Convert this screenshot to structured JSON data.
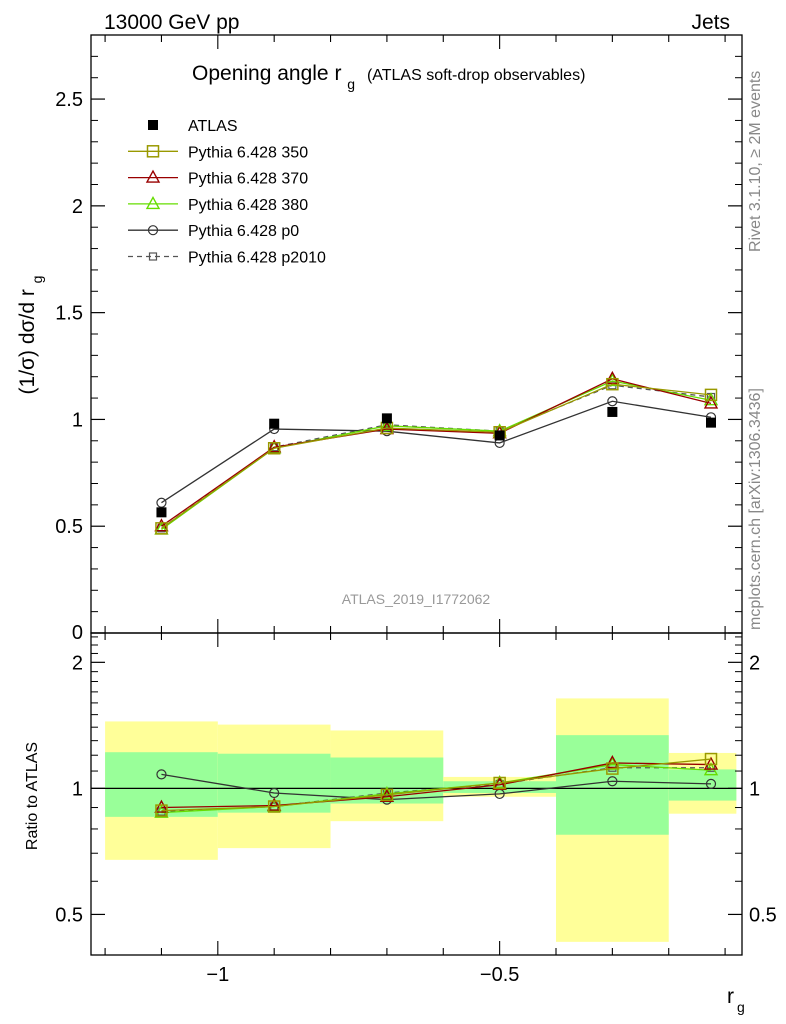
{
  "header": {
    "left": "13000 GeV pp",
    "right": "Jets"
  },
  "side_text": {
    "rivet": "Rivet 3.1.10, ≥ 2M events",
    "mcplots": "mcplots.cern.ch [arXiv:1306.3436]"
  },
  "chart_data": [
    {
      "type": "line",
      "title": "Opening angle r",
      "title_sub": "g",
      "title_suffix": "(ATLAS soft-drop observables)",
      "ylabel": "(1/σ) dσ/d r",
      "ylabel_sub": "g",
      "xlabel": "r",
      "xlabel_sub": "g",
      "watermark": "ATLAS_2019_I1772062",
      "xlim": [
        -1.225,
        -0.07
      ],
      "ylim": [
        0,
        2.8
      ],
      "yticks": [
        "0.5",
        "1",
        "1.5",
        "2",
        "2.5"
      ],
      "ytick_values": [
        0.5,
        1,
        1.5,
        2,
        2.5
      ],
      "y_zero_label": "0",
      "xtick_values": [
        -1,
        -0.5
      ],
      "x": [
        -1.1,
        -0.9,
        -0.7,
        -0.5,
        -0.3,
        -0.125
      ],
      "legend_position": "top-left",
      "series": [
        {
          "name": "ATLAS",
          "color": "#000000",
          "marker": "filled-square",
          "line": "none",
          "values": [
            0.565,
            0.98,
            1.005,
            0.925,
            1.035,
            0.985
          ]
        },
        {
          "name": "Pythia 6.428 350",
          "color": "#999900",
          "marker": "open-square",
          "line": "solid",
          "values": [
            0.49,
            0.865,
            0.96,
            0.94,
            1.165,
            1.115
          ]
        },
        {
          "name": "Pythia 6.428 370",
          "color": "#990000",
          "marker": "open-triangle",
          "line": "solid",
          "values": [
            0.5,
            0.87,
            0.955,
            0.935,
            1.19,
            1.075
          ]
        },
        {
          "name": "Pythia 6.428 380",
          "color": "#66dd00",
          "marker": "open-triangle",
          "line": "solid",
          "values": [
            0.485,
            0.865,
            0.97,
            0.945,
            1.18,
            1.09
          ]
        },
        {
          "name": "Pythia 6.428 p0",
          "color": "#333333",
          "marker": "open-circle",
          "line": "solid",
          "values": [
            0.61,
            0.955,
            0.945,
            0.89,
            1.085,
            1.01
          ]
        },
        {
          "name": "Pythia 6.428 p2010",
          "color": "#555555",
          "marker": "open-square-small",
          "line": "dashed",
          "values": [
            0.49,
            0.87,
            0.975,
            0.945,
            1.16,
            1.105
          ]
        }
      ]
    },
    {
      "type": "line",
      "ylabel": "Ratio to ATLAS",
      "xlabel": "r",
      "xlabel_sub": "g",
      "ylim": [
        0.4,
        2.35
      ],
      "xlim": [
        -1.225,
        -0.07
      ],
      "yticks": [
        "0.5",
        "1",
        "2"
      ],
      "ytick_values": [
        0.5,
        1,
        2
      ],
      "xticks": [
        "−1",
        "−0.5"
      ],
      "xtick_values": [
        -1,
        -0.5
      ],
      "bands": {
        "bin_edges": [
          -1.2,
          -1.0,
          -0.8,
          -0.6,
          -0.4,
          -0.2,
          -0.08
        ],
        "green_low": [
          0.855,
          0.875,
          0.92,
          0.975,
          0.775,
          0.935
        ],
        "green_high": [
          1.22,
          1.21,
          1.185,
          1.04,
          1.34,
          1.11
        ],
        "yellow_low": [
          0.675,
          0.72,
          0.835,
          0.955,
          0.43,
          0.87
        ],
        "yellow_high": [
          1.445,
          1.42,
          1.375,
          1.065,
          1.64,
          1.215
        ],
        "green_color": "#99ff99",
        "yellow_color": "#ffff99"
      },
      "x": [
        -1.1,
        -0.9,
        -0.7,
        -0.5,
        -0.3,
        -0.125
      ],
      "series": [
        {
          "name": "Pythia 6.428 350",
          "color": "#999900",
          "marker": "open-square",
          "line": "solid",
          "values": [
            0.885,
            0.905,
            0.965,
            1.03,
            1.115,
            1.175
          ]
        },
        {
          "name": "Pythia 6.428 370",
          "color": "#990000",
          "marker": "open-triangle",
          "line": "solid",
          "values": [
            0.9,
            0.91,
            0.955,
            1.02,
            1.15,
            1.14
          ]
        },
        {
          "name": "Pythia 6.428 380",
          "color": "#66dd00",
          "marker": "open-triangle",
          "line": "solid",
          "values": [
            0.875,
            0.905,
            0.97,
            1.03,
            1.14,
            1.105
          ]
        },
        {
          "name": "Pythia 6.428 p0",
          "color": "#333333",
          "marker": "open-circle",
          "line": "solid",
          "values": [
            1.08,
            0.975,
            0.94,
            0.97,
            1.04,
            1.025
          ]
        },
        {
          "name": "Pythia 6.428 p2010",
          "color": "#555555",
          "marker": "open-square-small",
          "line": "dashed",
          "values": [
            0.88,
            0.905,
            0.975,
            1.025,
            1.12,
            1.12
          ]
        }
      ]
    }
  ]
}
